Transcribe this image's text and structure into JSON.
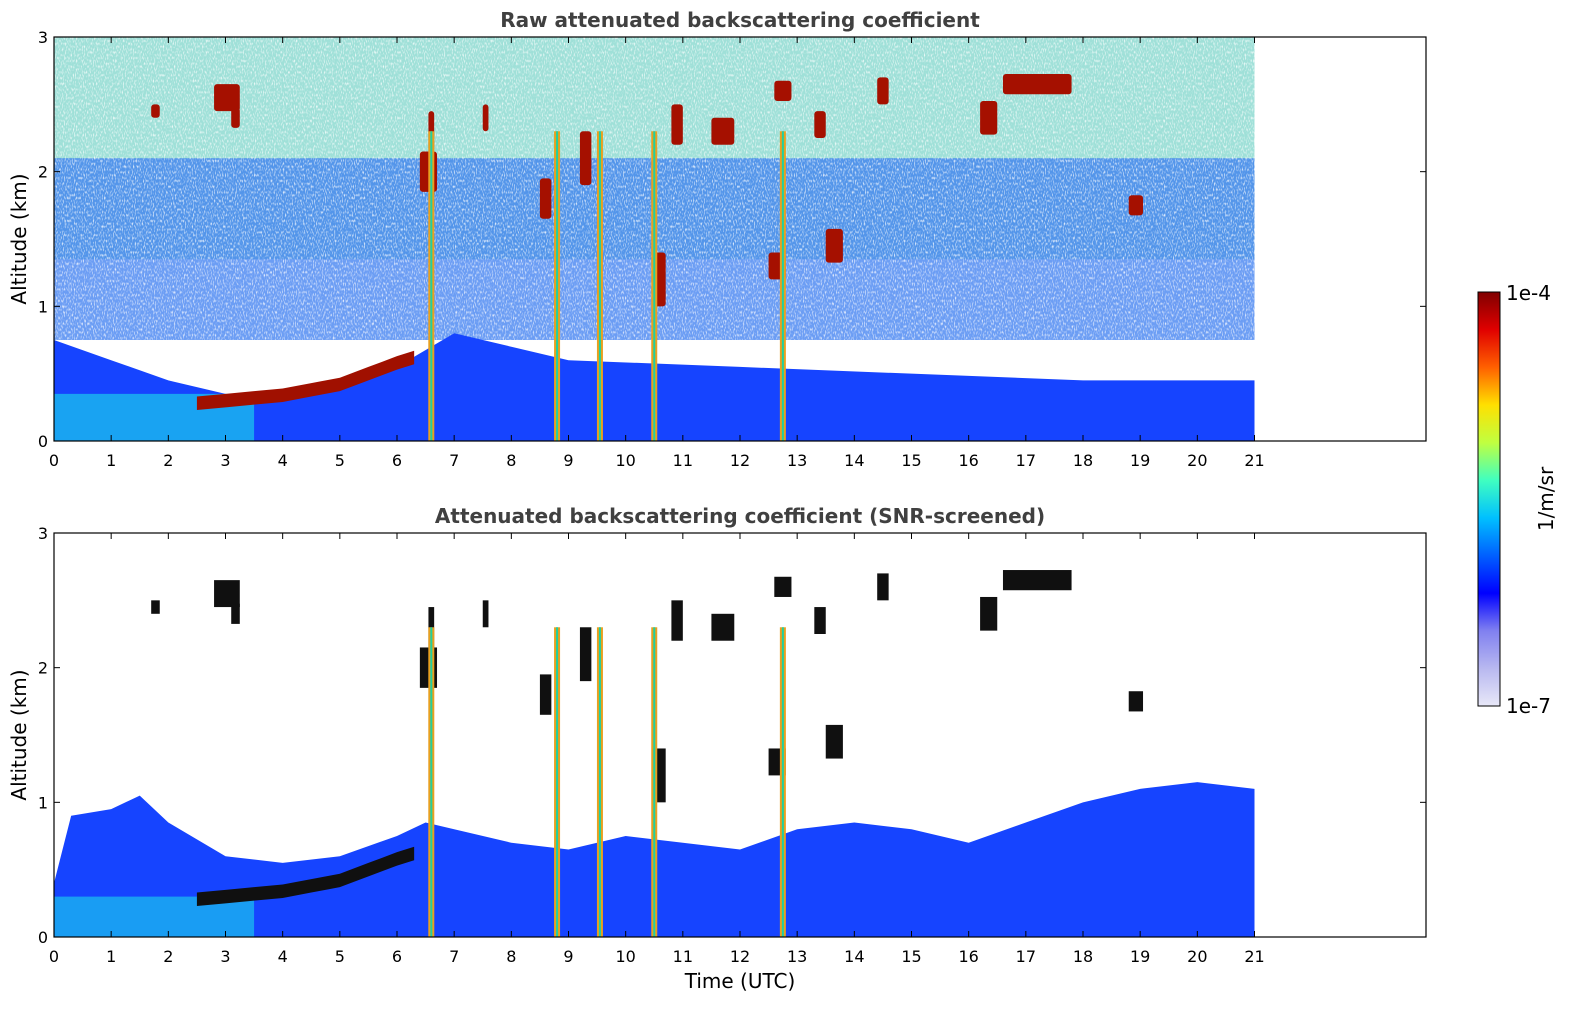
{
  "chart_data": [
    {
      "type": "heatmap",
      "title": "Raw attenuated backscattering coefficient",
      "xlabel": "",
      "ylabel": "Altitude (km)",
      "xlim": [
        0,
        24
      ],
      "ylim": [
        0,
        3
      ],
      "x_ticks": [
        "0",
        "1",
        "2",
        "3",
        "4",
        "5",
        "6",
        "7",
        "8",
        "9",
        "10",
        "11",
        "12",
        "13",
        "14",
        "15",
        "16",
        "17",
        "18",
        "19",
        "20",
        "21"
      ],
      "y_ticks": [
        "0",
        "1",
        "2",
        "3"
      ],
      "data_extent_x": [
        0,
        21
      ],
      "features": {
        "boundary_layer_top_km": [
          [
            0,
            0.75
          ],
          [
            1,
            0.6
          ],
          [
            2,
            0.45
          ],
          [
            3,
            0.35
          ],
          [
            4,
            0.3
          ],
          [
            5,
            0.4
          ],
          [
            6,
            0.55
          ],
          [
            7,
            0.8
          ],
          [
            8,
            0.7
          ],
          [
            9,
            0.6
          ],
          [
            12,
            0.55
          ],
          [
            15,
            0.5
          ],
          [
            18,
            0.45
          ],
          [
            21,
            0.45
          ]
        ],
        "aerosol_layer": [
          [
            2.5,
            0.28
          ],
          [
            3,
            0.3
          ],
          [
            3.5,
            0.32
          ],
          [
            4,
            0.34
          ],
          [
            4.5,
            0.38
          ],
          [
            5,
            0.42
          ],
          [
            5.5,
            0.5
          ],
          [
            6,
            0.58
          ],
          [
            6.3,
            0.62
          ]
        ],
        "rain_columns_utc": [
          6.6,
          8.8,
          9.55,
          10.5,
          12.75
        ],
        "cloud_patches": [
          [
            2.8,
            2.55,
            0.45,
            0.2
          ],
          [
            3.1,
            2.4,
            0.15,
            0.15
          ],
          [
            1.7,
            2.45,
            0.15,
            0.1
          ],
          [
            6.4,
            2.0,
            0.3,
            0.3
          ],
          [
            6.55,
            2.3,
            0.1,
            0.3
          ],
          [
            7.5,
            2.4,
            0.1,
            0.2
          ],
          [
            8.5,
            1.8,
            0.2,
            0.3
          ],
          [
            9.2,
            2.1,
            0.2,
            0.4
          ],
          [
            10.5,
            1.2,
            0.2,
            0.4
          ],
          [
            10.8,
            2.35,
            0.2,
            0.3
          ],
          [
            11.5,
            2.3,
            0.4,
            0.2
          ],
          [
            12.5,
            1.3,
            0.3,
            0.2
          ],
          [
            12.6,
            2.6,
            0.3,
            0.15
          ],
          [
            13.3,
            2.35,
            0.2,
            0.2
          ],
          [
            13.5,
            1.45,
            0.3,
            0.25
          ],
          [
            14.4,
            2.6,
            0.2,
            0.2
          ],
          [
            16.6,
            2.65,
            1.2,
            0.15
          ],
          [
            16.2,
            2.4,
            0.3,
            0.25
          ],
          [
            18.8,
            1.75,
            0.25,
            0.15
          ]
        ]
      }
    },
    {
      "type": "heatmap",
      "title": "Attenuated backscattering coefficient (SNR-screened)",
      "xlabel": "Time (UTC)",
      "ylabel": "Altitude (km)",
      "xlim": [
        0,
        24
      ],
      "ylim": [
        0,
        3
      ],
      "x_ticks": [
        "0",
        "1",
        "2",
        "3",
        "4",
        "5",
        "6",
        "7",
        "8",
        "9",
        "10",
        "11",
        "12",
        "13",
        "14",
        "15",
        "16",
        "17",
        "18",
        "19",
        "20",
        "21"
      ],
      "y_ticks": [
        "0",
        "1",
        "2",
        "3"
      ],
      "data_extent_x": [
        0,
        21
      ],
      "features": {
        "screened_top_km": [
          [
            0,
            0.4
          ],
          [
            0.3,
            0.9
          ],
          [
            1,
            0.95
          ],
          [
            1.5,
            1.05
          ],
          [
            2,
            0.85
          ],
          [
            3,
            0.6
          ],
          [
            4,
            0.55
          ],
          [
            5,
            0.6
          ],
          [
            6,
            0.75
          ],
          [
            6.5,
            0.85
          ],
          [
            7,
            0.8
          ],
          [
            8,
            0.7
          ],
          [
            9,
            0.65
          ],
          [
            10,
            0.75
          ],
          [
            11,
            0.7
          ],
          [
            12,
            0.65
          ],
          [
            13,
            0.8
          ],
          [
            14,
            0.85
          ],
          [
            15,
            0.8
          ],
          [
            16,
            0.7
          ],
          [
            17,
            0.85
          ],
          [
            18,
            1.0
          ],
          [
            19,
            1.1
          ],
          [
            20,
            1.15
          ],
          [
            21,
            1.1
          ]
        ]
      }
    }
  ],
  "colorbar": {
    "label": "1/m/sr",
    "min_label": "1e-7",
    "max_label": "1e-4",
    "colormap": "jet",
    "colors": [
      "#e8e8f8",
      "#b8b8f0",
      "#8080f0",
      "#0000ff",
      "#0060ff",
      "#00c0ff",
      "#40ffc0",
      "#c0ff40",
      "#ffe000",
      "#ff6000",
      "#e00000",
      "#800000"
    ]
  }
}
